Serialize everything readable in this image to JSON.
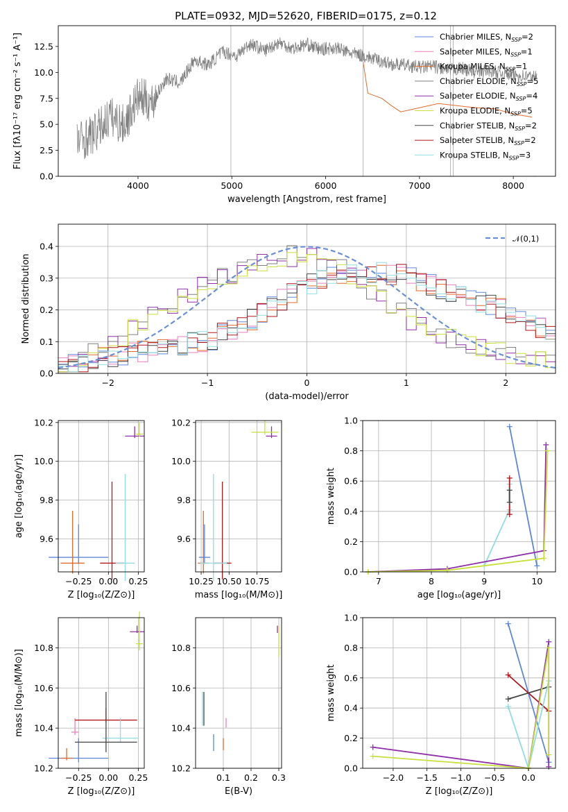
{
  "colors": {
    "chabrier_miles": "#5b87d9",
    "salpeter_miles": "#e87fbc",
    "kroupa_miles": "#e06a2b",
    "chabrier_elodie": "#7f7f7f",
    "salpeter_elodie": "#8e2fa8",
    "kroupa_elodie": "#c9df3a",
    "chabrier_stelib": "#444444",
    "salpeter_stelib": "#b3161b",
    "kroupa_stelib": "#8fdde0",
    "normal_curve": "#6a8fd6",
    "grid": "#b0b0b0"
  },
  "legend": [
    {
      "key": "chabrier_miles",
      "label": "Chabrier MILES, N",
      "sub": "SSP",
      "suffix": "=2"
    },
    {
      "key": "salpeter_miles",
      "label": "Salpeter MILES, N",
      "sub": "SSP",
      "suffix": "=1"
    },
    {
      "key": "kroupa_miles",
      "label": "Kroupa MILES, N",
      "sub": "SSP",
      "suffix": "=1"
    },
    {
      "key": "chabrier_elodie",
      "label": "Chabrier ELODIE, N",
      "sub": "SSP",
      "suffix": "=5"
    },
    {
      "key": "salpeter_elodie",
      "label": "Salpeter ELODIE, N",
      "sub": "SSP",
      "suffix": "=4"
    },
    {
      "key": "kroupa_elodie",
      "label": "Kroupa ELODIE, N",
      "sub": "SSP",
      "suffix": "=5"
    },
    {
      "key": "chabrier_stelib",
      "label": "Chabrier STELIB, N",
      "sub": "SSP",
      "suffix": "=2"
    },
    {
      "key": "salpeter_stelib",
      "label": "Salpeter STELIB, N",
      "sub": "SSP",
      "suffix": "=2"
    },
    {
      "key": "kroupa_stelib",
      "label": "Kroupa STELIB, N",
      "sub": "SSP",
      "suffix": "=3"
    }
  ],
  "chart_data": [
    {
      "id": "spectrum",
      "type": "line",
      "title": "PLATE=0932, MJD=52620, FIBERID=0175, z=0.12",
      "xlabel": "wavelength [Angstrom, rest frame]",
      "ylabel": "Flux [fλ10⁻¹⁷ erg cm⁻² s⁻¹ A⁻¹]",
      "xlim": [
        3150,
        8450
      ],
      "ylim": [
        0,
        14.5
      ],
      "xticks": [
        4000,
        5000,
        6000,
        7000,
        8000
      ],
      "yticks": [
        0.0,
        2.5,
        5.0,
        7.5,
        10.0,
        12.5
      ],
      "grid": false,
      "legend_position": "top-right",
      "series": [
        {
          "key": "model_envelope",
          "x": [
            3350,
            3500,
            3700,
            3900,
            4000,
            4200,
            4400,
            4600,
            4800,
            5000,
            5200,
            5400,
            5600,
            5800,
            6000,
            6200,
            6400,
            6600,
            6800,
            7000,
            7200,
            7400,
            7600,
            7800,
            8000,
            8200
          ],
          "y": [
            3.8,
            3.9,
            5.0,
            5.5,
            7.0,
            8.0,
            9.0,
            10.8,
            11.5,
            12.2,
            12.5,
            12.6,
            12.8,
            12.6,
            12.3,
            11.8,
            11.5,
            11.0,
            10.6,
            10.5,
            10.4,
            10.2,
            10.1,
            10.0,
            9.8,
            9.6
          ]
        },
        {
          "key": "data_noisy",
          "x": [
            3400,
            3550,
            3700,
            3850,
            4000,
            4150,
            4300,
            4450,
            4600,
            4750,
            4900,
            5050,
            5200,
            5350,
            5500,
            5650,
            5800,
            5950,
            6100,
            6250,
            6400,
            6550,
            6700,
            6850,
            7000,
            7150,
            7300,
            7450,
            7600,
            7750,
            7900,
            8050,
            8200
          ],
          "y": [
            3.5,
            4.2,
            5.8,
            4.9,
            7.6,
            7.1,
            9.4,
            9.0,
            11.2,
            10.7,
            12.0,
            11.6,
            12.8,
            12.1,
            12.9,
            12.3,
            12.7,
            12.2,
            12.4,
            11.9,
            11.6,
            11.2,
            10.8,
            10.7,
            10.5,
            10.6,
            10.2,
            10.4,
            10.0,
            10.2,
            9.9,
            9.7,
            9.6
          ]
        },
        {
          "key": "kroupa_miles_step",
          "x": [
            6400,
            6450,
            6600,
            6700,
            6800,
            7000,
            7200,
            7400,
            7600,
            7800,
            8000,
            8200
          ],
          "y": [
            11.0,
            8.0,
            7.5,
            6.8,
            6.2,
            6.6,
            7.0,
            6.8,
            6.6,
            6.5,
            6.0,
            5.7
          ]
        }
      ]
    },
    {
      "id": "residuals",
      "type": "line",
      "xlabel": "(data-model)/error",
      "ylabel": "Normed distribution",
      "xlim": [
        -2.5,
        2.5
      ],
      "ylim": [
        0,
        0.47
      ],
      "xticks": [
        -2,
        -1,
        0,
        1,
        2
      ],
      "yticks": [
        0.0,
        0.1,
        0.2,
        0.3,
        0.4
      ],
      "grid": true,
      "legend": [
        {
          "label": "𝒩(0,1)",
          "key": "normal_curve"
        }
      ],
      "legend_position": "top-right",
      "series": [
        {
          "key": "curve_a",
          "x": [
            -2.5,
            -2.0,
            -1.5,
            -1.0,
            -0.5,
            0.0,
            0.5,
            1.0,
            1.5,
            2.0,
            2.5
          ],
          "y": [
            0.02,
            0.05,
            0.08,
            0.1,
            0.18,
            0.28,
            0.32,
            0.31,
            0.25,
            0.2,
            0.12
          ]
        },
        {
          "key": "curve_b",
          "x": [
            -2.5,
            -2.0,
            -1.5,
            -1.0,
            -0.5,
            0.0,
            0.5,
            1.0,
            1.5,
            2.0,
            2.5
          ],
          "y": [
            0.02,
            0.08,
            0.2,
            0.28,
            0.34,
            0.38,
            0.3,
            0.18,
            0.1,
            0.07,
            0.03
          ]
        }
      ]
    },
    {
      "id": "age_vs_Z",
      "type": "scatter",
      "xlabel": "Z [log₁₀(Z/Z⊙)]",
      "ylabel": "age  [log₁₀(age/yr)]",
      "xlim": [
        -0.42,
        0.3
      ],
      "ylim": [
        9.43,
        10.21
      ],
      "xticks": [
        -0.25,
        0.0,
        0.25
      ],
      "yticks": [
        9.6,
        9.8,
        10.0,
        10.2
      ],
      "grid": true,
      "points": [
        {
          "key": "chabrier_miles",
          "x": -0.25,
          "y": 9.505,
          "xerr": 0.25,
          "yerr": 0.17
        },
        {
          "key": "kroupa_miles",
          "x": -0.3,
          "y": 9.475,
          "xerr": 0.1,
          "yerr": 0.27
        },
        {
          "key": "salpeter_stelib",
          "x": 0.03,
          "y": 9.475,
          "xerr": 0.1,
          "yerr": 0.42
        },
        {
          "key": "kroupa_stelib",
          "x": 0.14,
          "y": 9.475,
          "xerr": 0.08,
          "yerr": 0.46
        },
        {
          "key": "salpeter_elodie",
          "x": 0.22,
          "y": 10.13,
          "xerr": 0.08,
          "yerr": 0.05
        },
        {
          "key": "kroupa_elodie",
          "x": 0.26,
          "y": 10.14,
          "xerr": 0.03,
          "yerr": 0.06
        }
      ]
    },
    {
      "id": "age_vs_mass",
      "type": "scatter",
      "xlabel": "mass [log₁₀(M/M⊙)]",
      "xlim": [
        10.2,
        10.97
      ],
      "ylim": [
        9.43,
        10.21
      ],
      "xticks": [
        10.25,
        10.5,
        10.75
      ],
      "yticks": [
        9.6,
        9.8,
        10.0,
        10.2
      ],
      "grid": true,
      "points": [
        {
          "key": "chabrier_miles",
          "x": 10.28,
          "y": 9.505,
          "xerr": 0.05,
          "yerr": 0.17
        },
        {
          "key": "kroupa_miles",
          "x": 10.27,
          "y": 9.475,
          "xerr": 0.05,
          "yerr": 0.27
        },
        {
          "key": "salpeter_stelib",
          "x": 10.44,
          "y": 9.475,
          "xerr": 0.08,
          "yerr": 0.42
        },
        {
          "key": "kroupa_stelib",
          "x": 10.36,
          "y": 9.475,
          "xerr": 0.12,
          "yerr": 0.46
        },
        {
          "key": "salpeter_elodie",
          "x": 10.88,
          "y": 10.13,
          "xerr": 0.05,
          "yerr": 0.05
        },
        {
          "key": "kroupa_elodie",
          "x": 10.82,
          "y": 10.15,
          "xerr": 0.12,
          "yerr": 0.06
        }
      ]
    },
    {
      "id": "weight_vs_age",
      "type": "line",
      "xlabel": "age  [log₁₀(age/yr)]",
      "ylabel": "mass weight",
      "xlim": [
        6.7,
        10.35
      ],
      "ylim": [
        0,
        1.0
      ],
      "xticks": [
        7,
        8,
        9,
        10
      ],
      "yticks": [
        0.0,
        0.2,
        0.4,
        0.6,
        0.8,
        1.0
      ],
      "grid": true,
      "series": [
        {
          "key": "chabrier_miles",
          "x": [
            9.48,
            10.0
          ],
          "y": [
            0.96,
            0.04
          ]
        },
        {
          "key": "kroupa_stelib",
          "x": [
            9.0,
            9.48,
            9.48
          ],
          "y": [
            0.04,
            0.41,
            0.58
          ]
        },
        {
          "key": "salpeter_elodie",
          "x": [
            6.8,
            8.3,
            10.13,
            10.17
          ],
          "y": [
            0.0,
            0.02,
            0.14,
            0.84
          ]
        },
        {
          "key": "kroupa_elodie",
          "x": [
            6.8,
            8.3,
            10.13,
            10.2
          ],
          "y": [
            0.0,
            0.01,
            0.09,
            0.8
          ]
        },
        {
          "key": "salpeter_stelib",
          "x": [
            9.48,
            9.48
          ],
          "y": [
            0.38,
            0.62
          ]
        },
        {
          "key": "chabrier_stelib",
          "x": [
            9.48,
            9.48
          ],
          "y": [
            0.46,
            0.54
          ]
        }
      ]
    },
    {
      "id": "mass_vs_Z",
      "type": "scatter",
      "xlabel": "Z [log₁₀(Z/Z⊙)]",
      "ylabel": "mass [log₁₀(M/M⊙)]",
      "xlim": [
        -0.42,
        0.3
      ],
      "ylim": [
        10.2,
        10.95
      ],
      "xticks": [
        -0.25,
        0.0,
        0.25
      ],
      "yticks": [
        10.2,
        10.4,
        10.6,
        10.8
      ],
      "grid": true,
      "points": [
        {
          "key": "chabrier_miles",
          "x": -0.25,
          "y": 10.25,
          "xerr": 0.25,
          "yerr": 0.1
        },
        {
          "key": "kroupa_miles",
          "x": -0.35,
          "y": 10.25,
          "xerr": 0.05,
          "yerr": 0.05
        },
        {
          "key": "salpeter_miles",
          "x": -0.28,
          "y": 10.38,
          "xerr": 0.03,
          "yerr": 0.07
        },
        {
          "key": "salpeter_stelib",
          "x": -0.02,
          "y": 10.44,
          "xerr": 0.26,
          "yerr": 0.06
        },
        {
          "key": "kroupa_stelib",
          "x": 0.1,
          "y": 10.35,
          "xerr": 0.15,
          "yerr": 0.1
        },
        {
          "key": "chabrier_stelib",
          "x": -0.02,
          "y": 10.33,
          "xerr": 0.26,
          "yerr": 0.25
        },
        {
          "key": "salpeter_elodie",
          "x": 0.24,
          "y": 10.88,
          "xerr": 0.06,
          "yerr": 0.03
        },
        {
          "key": "kroupa_elodie",
          "x": 0.26,
          "y": 10.82,
          "xerr": 0.03,
          "yerr": 0.16
        }
      ]
    },
    {
      "id": "mass_vs_ebv",
      "type": "scatter",
      "xlabel": "E(B-V)",
      "xlim": [
        0.0,
        0.31
      ],
      "ylim": [
        10.2,
        10.95
      ],
      "xticks": [
        0.1,
        0.2,
        0.3
      ],
      "yticks": [
        10.2,
        10.4,
        10.6,
        10.8
      ],
      "grid": true,
      "points": [
        {
          "key": "kroupa_stelib",
          "x": 0.025,
          "y": 10.44,
          "yerr": 0.14
        },
        {
          "key": "chabrier_stelib",
          "x": 0.03,
          "y": 10.44,
          "yerr": 0.14
        },
        {
          "key": "chabrier_miles",
          "x": 0.065,
          "y": 10.3,
          "yerr": 0.07
        },
        {
          "key": "kroupa_miles",
          "x": 0.1,
          "y": 10.3,
          "yerr": 0.05
        },
        {
          "key": "salpeter_miles",
          "x": 0.11,
          "y": 10.41,
          "yerr": 0.04
        },
        {
          "key": "salpeter_elodie",
          "x": 0.295,
          "y": 10.88,
          "yerr": 0.03
        },
        {
          "key": "kroupa_elodie",
          "x": 0.3,
          "y": 10.78,
          "yerr": 0.13
        }
      ]
    },
    {
      "id": "weight_vs_Z",
      "type": "line",
      "xlabel": "Z [log₁₀(Z/Z⊙)]",
      "ylabel": "mass weight",
      "xlim": [
        -2.45,
        0.4
      ],
      "ylim": [
        0,
        1.0
      ],
      "xticks": [
        -2.0,
        -1.5,
        -1.0,
        -0.5,
        0.0
      ],
      "yticks": [
        0.0,
        0.2,
        0.4,
        0.6,
        0.8,
        1.0
      ],
      "grid": true,
      "series": [
        {
          "key": "chabrier_miles",
          "x": [
            -0.3,
            0.3
          ],
          "y": [
            0.96,
            0.04
          ]
        },
        {
          "key": "salpeter_stelib",
          "x": [
            -0.3,
            0.3
          ],
          "y": [
            0.62,
            0.38
          ]
        },
        {
          "key": "chabrier_stelib",
          "x": [
            -0.3,
            0.3
          ],
          "y": [
            0.46,
            0.54
          ]
        },
        {
          "key": "kroupa_stelib",
          "x": [
            -0.3,
            0.0,
            0.3
          ],
          "y": [
            0.41,
            0.0,
            0.58
          ]
        },
        {
          "key": "salpeter_elodie",
          "x": [
            -2.3,
            0.0,
            0.3,
            0.3
          ],
          "y": [
            0.14,
            0.0,
            0.84,
            0.01
          ]
        },
        {
          "key": "kroupa_elodie",
          "x": [
            -2.3,
            0.0,
            0.3,
            0.3
          ],
          "y": [
            0.08,
            0.0,
            0.8,
            0.09
          ]
        }
      ]
    }
  ]
}
